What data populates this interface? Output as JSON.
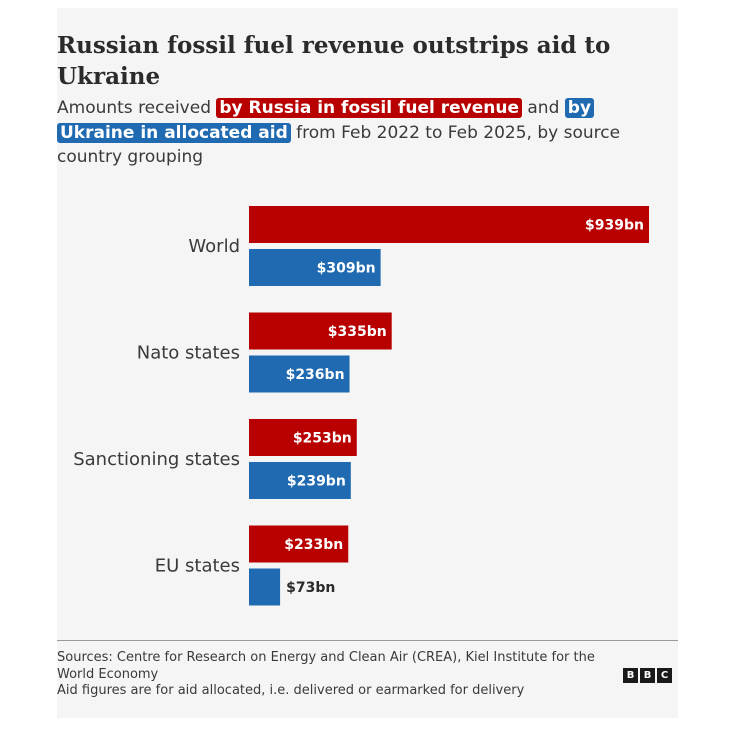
{
  "title": "Russian fossil fuel revenue outstrips aid to Ukraine",
  "subtitle": {
    "prefix": "Amounts received ",
    "highlight_russia": "by Russia in fossil fuel revenue",
    "middle": " and ",
    "highlight_ukraine": "by Ukraine in allocated aid",
    "suffix": " from Feb 2022 to Feb 2025, by source country grouping"
  },
  "colors": {
    "russia": "#b80000",
    "ukraine": "#1f6ab0"
  },
  "chart_data": {
    "type": "bar",
    "orientation": "horizontal",
    "categories": [
      "World",
      "Nato states",
      "Sanctioning states",
      "EU states"
    ],
    "series": [
      {
        "key": "russia",
        "values": [
          939,
          335,
          253,
          233
        ],
        "labels": [
          "$939bn",
          "$335bn",
          "$253bn",
          "$233bn"
        ]
      },
      {
        "key": "ukraine",
        "values": [
          309,
          236,
          239,
          73
        ],
        "labels": [
          "$309bn",
          "$236bn",
          "$239bn",
          "$73bn"
        ]
      }
    ],
    "xlim": [
      0,
      939
    ],
    "grid": false,
    "legend": "inline-in-subtitle"
  },
  "footer": {
    "sources": "Sources: Centre for Research on Energy and Clean Air (CREA), Kiel Institute for the World Economy",
    "note": "Aid figures are for aid allocated, i.e. delivered or earmarked for delivery"
  },
  "logo": {
    "letters": [
      "B",
      "B",
      "C"
    ]
  }
}
